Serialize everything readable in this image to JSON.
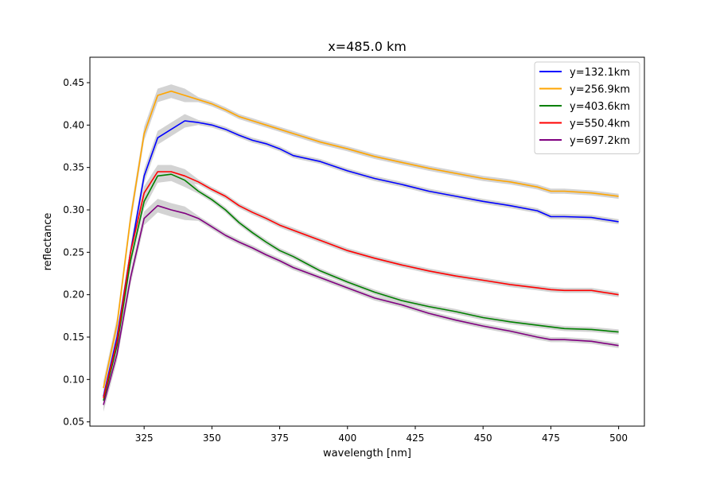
{
  "chart_data": {
    "type": "line",
    "title": "x=485.0 km",
    "xlabel": "wavelength [nm]",
    "ylabel": "reflectance",
    "xlim": [
      305,
      509.5
    ],
    "ylim": [
      0.045,
      0.48
    ],
    "xticks": [
      325,
      350,
      375,
      400,
      425,
      450,
      475,
      500
    ],
    "yticks": [
      0.05,
      0.1,
      0.15,
      0.2,
      0.25,
      0.3,
      0.35,
      0.4,
      0.45
    ],
    "grid": false,
    "legend_position": "top-right",
    "band_color": "#d3d3d3",
    "series": [
      {
        "name": "y=132.1km",
        "color": "#0000ff",
        "x": [
          310,
          315,
          320,
          325,
          330,
          335,
          340,
          345,
          350,
          355,
          360,
          365,
          370,
          375,
          380,
          390,
          400,
          410,
          420,
          430,
          440,
          450,
          460,
          470,
          475,
          480,
          490,
          500
        ],
        "y": [
          0.08,
          0.15,
          0.25,
          0.34,
          0.385,
          0.395,
          0.405,
          0.403,
          0.4,
          0.395,
          0.388,
          0.382,
          0.378,
          0.372,
          0.364,
          0.357,
          0.346,
          0.337,
          0.33,
          0.322,
          0.316,
          0.31,
          0.305,
          0.299,
          0.292,
          0.292,
          0.291,
          0.286
        ]
      },
      {
        "name": "y=256.9km",
        "color": "#ffa500",
        "x": [
          310,
          315,
          320,
          325,
          330,
          335,
          340,
          345,
          350,
          355,
          360,
          365,
          370,
          375,
          380,
          390,
          400,
          410,
          420,
          430,
          440,
          450,
          460,
          470,
          475,
          480,
          490,
          500
        ],
        "y": [
          0.09,
          0.165,
          0.29,
          0.39,
          0.435,
          0.44,
          0.435,
          0.43,
          0.425,
          0.418,
          0.41,
          0.405,
          0.4,
          0.395,
          0.39,
          0.38,
          0.372,
          0.363,
          0.356,
          0.349,
          0.343,
          0.337,
          0.333,
          0.327,
          0.322,
          0.322,
          0.32,
          0.316
        ]
      },
      {
        "name": "y=403.6km",
        "color": "#008000",
        "x": [
          310,
          315,
          320,
          325,
          330,
          335,
          340,
          345,
          350,
          355,
          360,
          365,
          370,
          375,
          380,
          390,
          400,
          410,
          420,
          430,
          440,
          450,
          460,
          470,
          475,
          480,
          490,
          500
        ],
        "y": [
          0.075,
          0.14,
          0.24,
          0.31,
          0.34,
          0.342,
          0.335,
          0.322,
          0.312,
          0.3,
          0.285,
          0.273,
          0.262,
          0.252,
          0.245,
          0.228,
          0.215,
          0.203,
          0.193,
          0.186,
          0.18,
          0.173,
          0.168,
          0.164,
          0.162,
          0.16,
          0.159,
          0.156
        ]
      },
      {
        "name": "y=550.4km",
        "color": "#ff0000",
        "x": [
          310,
          315,
          320,
          325,
          330,
          335,
          340,
          345,
          350,
          355,
          360,
          365,
          370,
          375,
          380,
          390,
          400,
          410,
          420,
          430,
          440,
          450,
          460,
          470,
          475,
          480,
          490,
          500
        ],
        "y": [
          0.078,
          0.145,
          0.25,
          0.32,
          0.345,
          0.345,
          0.34,
          0.333,
          0.324,
          0.316,
          0.305,
          0.297,
          0.29,
          0.282,
          0.276,
          0.264,
          0.252,
          0.243,
          0.235,
          0.228,
          0.222,
          0.217,
          0.212,
          0.208,
          0.206,
          0.205,
          0.205,
          0.2
        ]
      },
      {
        "name": "y=697.2km",
        "color": "#800080",
        "x": [
          310,
          315,
          320,
          325,
          330,
          335,
          340,
          345,
          350,
          355,
          360,
          365,
          370,
          375,
          380,
          390,
          400,
          410,
          420,
          430,
          440,
          450,
          460,
          470,
          475,
          480,
          490,
          500
        ],
        "y": [
          0.07,
          0.13,
          0.22,
          0.29,
          0.305,
          0.3,
          0.296,
          0.29,
          0.28,
          0.27,
          0.262,
          0.255,
          0.247,
          0.24,
          0.232,
          0.22,
          0.208,
          0.196,
          0.188,
          0.178,
          0.17,
          0.163,
          0.157,
          0.15,
          0.147,
          0.147,
          0.145,
          0.14
        ]
      }
    ]
  }
}
